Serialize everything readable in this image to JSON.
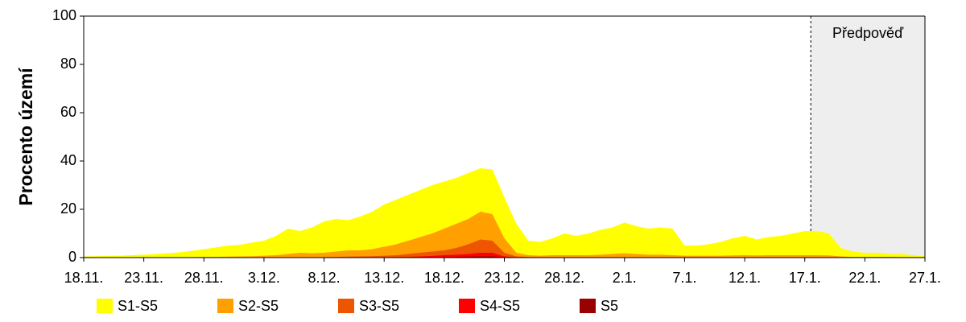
{
  "chart_data": {
    "type": "area",
    "ylabel": "Procento území",
    "ylim": [
      0,
      100
    ],
    "yticks": [
      0,
      20,
      40,
      60,
      80,
      100
    ],
    "grid": false,
    "forecast_label": "Předpověď",
    "forecast_start": 60.5,
    "categories": [
      "18.11.",
      null,
      null,
      null,
      null,
      "23.11.",
      null,
      null,
      null,
      null,
      "28.11.",
      null,
      null,
      null,
      null,
      "3.12.",
      null,
      null,
      null,
      null,
      "8.12.",
      null,
      null,
      null,
      null,
      "13.12.",
      null,
      null,
      null,
      null,
      "18.12.",
      null,
      null,
      null,
      null,
      "23.12.",
      null,
      null,
      null,
      null,
      "28.12.",
      null,
      null,
      null,
      null,
      "2.1.",
      null,
      null,
      null,
      null,
      "7.1.",
      null,
      null,
      null,
      null,
      "12.1.",
      null,
      null,
      null,
      null,
      "17.1.",
      null,
      null,
      null,
      null,
      "22.1.",
      null,
      null,
      null,
      null,
      "27.1."
    ],
    "series": [
      {
        "name": "S1-S5",
        "color": "#ffff00",
        "values": [
          0.5,
          0.6,
          0.7,
          0.8,
          1,
          1.2,
          1.5,
          1.8,
          2.2,
          2.8,
          3.5,
          4.2,
          5,
          5.3,
          6.2,
          7,
          9,
          12,
          11,
          12.5,
          15,
          16,
          15.5,
          17,
          19,
          22,
          24,
          26,
          28,
          30,
          31.5,
          33,
          35,
          37,
          36.5,
          25,
          14,
          7,
          6.5,
          8,
          10,
          9,
          10,
          11.5,
          12.5,
          14.5,
          13,
          12,
          12.5,
          12,
          5,
          5,
          5.5,
          6.5,
          8,
          9,
          7.5,
          8.5,
          9,
          10,
          11,
          11,
          10,
          4,
          2.5,
          2,
          2,
          1.5,
          1.5,
          1,
          0.5
        ]
      },
      {
        "name": "S2-S5",
        "color": "#ffa000",
        "values": [
          0.2,
          0.2,
          0.2,
          0.2,
          0.2,
          0.2,
          0.2,
          0.2,
          0.2,
          0.2,
          0.3,
          0.3,
          0.4,
          0.5,
          0.6,
          0.8,
          1,
          1.5,
          2,
          1.8,
          2,
          2.5,
          3,
          3,
          3.5,
          4.5,
          5.5,
          7,
          8.5,
          10,
          12,
          14,
          16,
          19,
          18,
          8,
          2,
          1,
          0.8,
          1,
          1,
          1,
          1,
          1.2,
          1.5,
          1.8,
          1.5,
          1.2,
          1.2,
          1,
          0.8,
          0.8,
          0.8,
          0.8,
          0.9,
          1,
          0.9,
          1,
          1,
          1,
          1,
          1,
          0.9,
          0.5,
          0.3,
          0.3,
          0.3,
          0.3,
          0.2,
          0.2,
          0.2
        ]
      },
      {
        "name": "S3-S5",
        "color": "#ee5500",
        "values": [
          0.1,
          0.1,
          0.1,
          0.1,
          0.1,
          0.1,
          0.1,
          0.1,
          0.1,
          0.1,
          0.1,
          0.1,
          0.1,
          0.1,
          0.1,
          0.1,
          0.1,
          0.1,
          0.1,
          0.1,
          0.2,
          0.3,
          0.4,
          0.5,
          0.6,
          0.8,
          1,
          1.5,
          2,
          2.5,
          3,
          4,
          5.5,
          7.5,
          7,
          2,
          0.5,
          0.3,
          0.2,
          0.2,
          0.2,
          0.2,
          0.2,
          0.2,
          0.2,
          0.2,
          0.2,
          0.2,
          0.2,
          0.2,
          0.2,
          0.2,
          0.2,
          0.2,
          0.2,
          0.2,
          0.2,
          0.2,
          0.2,
          0.2,
          0.2,
          0.2,
          0.2,
          0.2,
          0.2,
          0.2,
          0.2,
          0.2,
          0.2,
          0.2,
          0.2
        ]
      },
      {
        "name": "S4-S5",
        "color": "#ff0000",
        "values": [
          0,
          0,
          0,
          0,
          0,
          0,
          0,
          0,
          0,
          0,
          0,
          0,
          0,
          0,
          0,
          0,
          0,
          0,
          0,
          0,
          0,
          0,
          0,
          0,
          0,
          0.1,
          0.2,
          0.3,
          0.5,
          0.7,
          1,
          1.2,
          1.5,
          2,
          2,
          0.5,
          0.1,
          0,
          0,
          0,
          0,
          0,
          0,
          0,
          0,
          0,
          0,
          0,
          0,
          0,
          0,
          0,
          0,
          0,
          0,
          0,
          0,
          0,
          0,
          0,
          0,
          0,
          0,
          0,
          0,
          0,
          0,
          0,
          0,
          0,
          0
        ]
      },
      {
        "name": "S5",
        "color": "#990000",
        "values": [
          0,
          0,
          0,
          0,
          0,
          0,
          0,
          0,
          0,
          0,
          0,
          0,
          0,
          0,
          0,
          0,
          0,
          0,
          0,
          0,
          0,
          0,
          0,
          0,
          0,
          0,
          0,
          0,
          0,
          0,
          0.2,
          0.3,
          0.4,
          0.5,
          0.5,
          0.1,
          0,
          0,
          0,
          0,
          0,
          0,
          0,
          0,
          0,
          0,
          0,
          0,
          0,
          0,
          0,
          0,
          0,
          0,
          0,
          0,
          0,
          0,
          0,
          0,
          0,
          0,
          0,
          0,
          0,
          0,
          0,
          0,
          0,
          0,
          0
        ]
      }
    ]
  }
}
